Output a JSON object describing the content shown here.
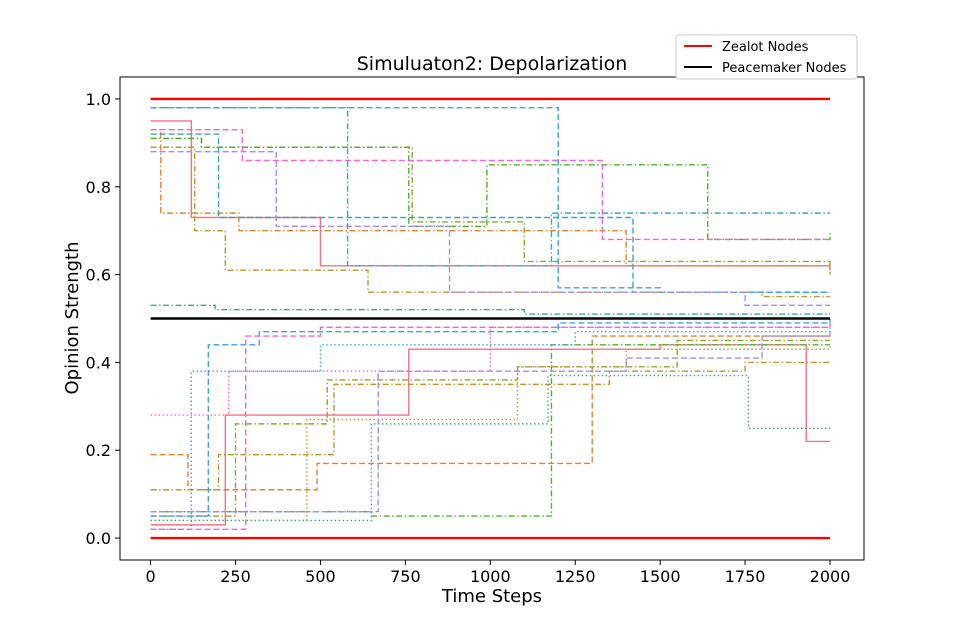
{
  "chart_data": {
    "type": "line",
    "title": "Simuluaton2: Depolarization",
    "xlabel": "Time Steps",
    "ylabel": "Opinion Strength",
    "xlim": [
      -90,
      2100
    ],
    "ylim": [
      -0.05,
      1.05
    ],
    "xticks": [
      0,
      250,
      500,
      750,
      1000,
      1250,
      1500,
      1750,
      2000
    ],
    "yticks": [
      0.0,
      0.2,
      0.4,
      0.6,
      0.8,
      1.0
    ],
    "ytick_labels": [
      "0.0",
      "0.2",
      "0.4",
      "0.6",
      "0.8",
      "1.0"
    ],
    "legend": {
      "placement": "top-right",
      "entries": [
        {
          "label": "Zealot Nodes",
          "color": "#ff0000"
        },
        {
          "label": "Peacemaker Nodes",
          "color": "#000000"
        }
      ]
    },
    "reference_series": [
      {
        "name": "Zealot Nodes",
        "color": "#ff0000",
        "x": [
          0,
          2000
        ],
        "y": [
          1.0,
          1.0
        ]
      },
      {
        "name": "Zealot Nodes",
        "color": "#ff0000",
        "x": [
          0,
          2000
        ],
        "y": [
          0.0,
          0.0
        ]
      },
      {
        "name": "Peacemaker Nodes",
        "color": "#000000",
        "x": [
          0,
          2000
        ],
        "y": [
          0.5,
          0.5
        ]
      }
    ],
    "series": [
      {
        "color": "#f77189",
        "dash": "solid",
        "steps": [
          [
            0,
            0.95
          ],
          [
            120,
            0.73
          ],
          [
            500,
            0.62
          ],
          [
            1940,
            0.62
          ],
          [
            2000,
            0.61
          ]
        ]
      },
      {
        "color": "#f77189",
        "dash": "solid",
        "steps": [
          [
            0,
            0.03
          ],
          [
            220,
            0.28
          ],
          [
            750,
            0.28
          ],
          [
            760,
            0.43
          ],
          [
            1500,
            0.44
          ],
          [
            1930,
            0.22
          ],
          [
            2000,
            0.22
          ]
        ]
      },
      {
        "color": "#e68332",
        "dash": "dashdot",
        "steps": [
          [
            0,
            0.93
          ],
          [
            30,
            0.74
          ],
          [
            260,
            0.7
          ],
          [
            1000,
            0.7
          ],
          [
            1400,
            0.62
          ],
          [
            2000,
            0.62
          ]
        ]
      },
      {
        "color": "#e68332",
        "dash": "dashed",
        "steps": [
          [
            0,
            0.19
          ],
          [
            110,
            0.11
          ],
          [
            490,
            0.17
          ],
          [
            1000,
            0.17
          ],
          [
            1300,
            0.46
          ],
          [
            2000,
            0.46
          ]
        ]
      },
      {
        "color": "#bb9832",
        "dash": "dashdot",
        "steps": [
          [
            0,
            0.89
          ],
          [
            130,
            0.7
          ],
          [
            220,
            0.61
          ],
          [
            640,
            0.56
          ],
          [
            1800,
            0.55
          ],
          [
            2000,
            0.55
          ]
        ]
      },
      {
        "color": "#bb9832",
        "dash": "dashdot",
        "steps": [
          [
            0,
            0.11
          ],
          [
            200,
            0.19
          ],
          [
            540,
            0.35
          ],
          [
            1350,
            0.38
          ],
          [
            1750,
            0.4
          ],
          [
            2000,
            0.4
          ]
        ]
      },
      {
        "color": "#bb9832",
        "dash": "dotted",
        "steps": [
          [
            0,
            0.04
          ],
          [
            460,
            0.27
          ],
          [
            1080,
            0.39
          ],
          [
            1400,
            0.43
          ],
          [
            2000,
            0.44
          ]
        ]
      },
      {
        "color": "#97a431",
        "dash": "dashdot",
        "steps": [
          [
            0,
            0.91
          ],
          [
            150,
            0.89
          ],
          [
            770,
            0.72
          ],
          [
            1100,
            0.63
          ],
          [
            1600,
            0.63
          ],
          [
            2000,
            0.6
          ]
        ]
      },
      {
        "color": "#97a431",
        "dash": "dashdot",
        "steps": [
          [
            0,
            0.05
          ],
          [
            250,
            0.26
          ],
          [
            520,
            0.36
          ],
          [
            1080,
            0.39
          ],
          [
            1550,
            0.45
          ],
          [
            2000,
            0.45
          ]
        ]
      },
      {
        "color": "#50b131",
        "dash": "dashdot",
        "steps": [
          [
            0,
            0.91
          ],
          [
            150,
            0.89
          ],
          [
            760,
            0.71
          ],
          [
            990,
            0.85
          ],
          [
            1640,
            0.68
          ],
          [
            2000,
            0.7
          ]
        ]
      },
      {
        "color": "#50b131",
        "dash": "dashdot",
        "steps": [
          [
            0,
            0.06
          ],
          [
            650,
            0.05
          ],
          [
            1180,
            0.44
          ],
          [
            1500,
            0.44
          ],
          [
            2000,
            0.44
          ]
        ]
      },
      {
        "color": "#34ae91",
        "dash": "dashdot",
        "steps": [
          [
            0,
            0.53
          ],
          [
            190,
            0.52
          ],
          [
            1100,
            0.51
          ],
          [
            2000,
            0.51
          ]
        ]
      },
      {
        "color": "#34ae91",
        "dash": "dotted",
        "steps": [
          [
            0,
            0.04
          ],
          [
            650,
            0.26
          ],
          [
            1170,
            0.37
          ],
          [
            1760,
            0.25
          ],
          [
            2000,
            0.25
          ]
        ]
      },
      {
        "color": "#37abb5",
        "dash": "dashdot",
        "steps": [
          [
            0,
            0.98
          ],
          [
            580,
            0.62
          ],
          [
            1180,
            0.74
          ],
          [
            2000,
            0.74
          ]
        ]
      },
      {
        "color": "#37abb5",
        "dash": "dashed",
        "steps": [
          [
            0,
            0.92
          ],
          [
            200,
            0.73
          ],
          [
            1420,
            0.56
          ],
          [
            2000,
            0.56
          ]
        ]
      },
      {
        "color": "#3ba3ec",
        "dash": "dashed",
        "steps": [
          [
            0,
            0.98
          ],
          [
            1200,
            0.57
          ],
          [
            1500,
            0.56
          ],
          [
            2000,
            0.56
          ]
        ]
      },
      {
        "color": "#3ba3ec",
        "dash": "dashed",
        "steps": [
          [
            0,
            0.05
          ],
          [
            170,
            0.44
          ],
          [
            320,
            0.47
          ],
          [
            1200,
            0.49
          ],
          [
            2000,
            0.5
          ]
        ]
      },
      {
        "color": "#3ba3ec",
        "dash": "dotted",
        "steps": [
          [
            0,
            0.02
          ],
          [
            120,
            0.38
          ],
          [
            500,
            0.44
          ],
          [
            1250,
            0.47
          ],
          [
            2000,
            0.48
          ]
        ]
      },
      {
        "color": "#a48cf4",
        "dash": "dashed",
        "steps": [
          [
            0,
            0.88
          ],
          [
            370,
            0.71
          ],
          [
            880,
            0.56
          ],
          [
            1750,
            0.53
          ],
          [
            2000,
            0.53
          ]
        ]
      },
      {
        "color": "#a48cf4",
        "dash": "dashed",
        "steps": [
          [
            0,
            0.06
          ],
          [
            670,
            0.38
          ],
          [
            1400,
            0.41
          ],
          [
            1800,
            0.46
          ],
          [
            2000,
            0.47
          ]
        ]
      },
      {
        "color": "#f564d4",
        "dash": "dashed",
        "steps": [
          [
            0,
            0.93
          ],
          [
            270,
            0.86
          ],
          [
            1330,
            0.68
          ],
          [
            2000,
            0.68
          ]
        ]
      },
      {
        "color": "#f564d4",
        "dash": "dotted",
        "steps": [
          [
            0,
            0.28
          ],
          [
            230,
            0.38
          ],
          [
            1000,
            0.48
          ],
          [
            2000,
            0.49
          ]
        ]
      },
      {
        "color": "#f564d4",
        "dash": "dashed",
        "steps": [
          [
            0,
            0.02
          ],
          [
            280,
            0.46
          ],
          [
            500,
            0.48
          ],
          [
            2000,
            0.49
          ]
        ]
      }
    ]
  }
}
